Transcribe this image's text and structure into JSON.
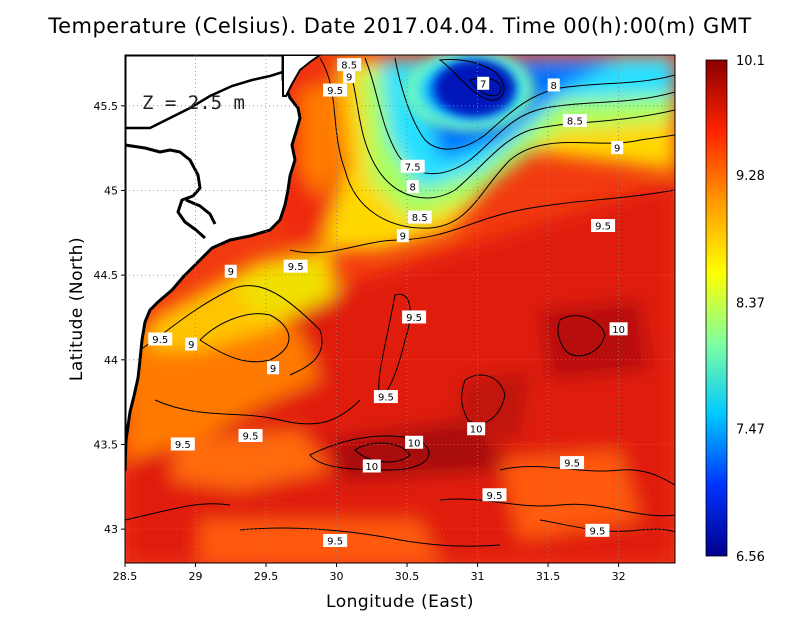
{
  "title": "Temperature (Celsius). Date 2017.04.04. Time 00(h):00(m)  GMT",
  "depth_label": "Z = 2.5 m",
  "x_axis": {
    "label": "Longitude (East)",
    "range": [
      28.5,
      32.4
    ],
    "ticks": [
      "28.5",
      "29",
      "29.5",
      "30",
      "30.5",
      "31",
      "31.5",
      "32"
    ]
  },
  "y_axis": {
    "label": "Latitude (North)",
    "range": [
      42.8,
      45.8
    ],
    "ticks": [
      "43",
      "43.5",
      "44",
      "44.5",
      "45",
      "45.5"
    ]
  },
  "grid": true,
  "colorbar": {
    "ticks": [
      "10.1",
      "9.28",
      "8.37",
      "7.47",
      "6.56"
    ],
    "min": 6.56,
    "max": 10.1,
    "colors": [
      "#00008c",
      "#0033ff",
      "#00c8ff",
      "#7fffa0",
      "#ffff00",
      "#ff9900",
      "#ff2200",
      "#8b0000"
    ]
  },
  "contour_labels": [
    {
      "text": "8.5",
      "lon": 30.09,
      "lat": 45.74
    },
    {
      "text": "9",
      "lon": 30.09,
      "lat": 45.67
    },
    {
      "text": "9.5",
      "lon": 29.99,
      "lat": 45.59
    },
    {
      "text": "7",
      "lon": 31.04,
      "lat": 45.63
    },
    {
      "text": "8",
      "lon": 31.54,
      "lat": 45.62
    },
    {
      "text": "8.5",
      "lon": 31.69,
      "lat": 45.41
    },
    {
      "text": "9",
      "lon": 31.99,
      "lat": 45.25
    },
    {
      "text": "7.5",
      "lon": 30.54,
      "lat": 45.14
    },
    {
      "text": "8",
      "lon": 30.54,
      "lat": 45.02
    },
    {
      "text": "8.5",
      "lon": 30.59,
      "lat": 44.84
    },
    {
      "text": "9",
      "lon": 30.47,
      "lat": 44.73
    },
    {
      "text": "9.5",
      "lon": 31.89,
      "lat": 44.79
    },
    {
      "text": "9.5",
      "lon": 29.71,
      "lat": 44.55
    },
    {
      "text": "9",
      "lon": 29.25,
      "lat": 44.52
    },
    {
      "text": "9.5",
      "lon": 30.55,
      "lat": 44.25
    },
    {
      "text": "10",
      "lon": 32.0,
      "lat": 44.18
    },
    {
      "text": "9.5",
      "lon": 28.75,
      "lat": 44.12
    },
    {
      "text": "9",
      "lon": 28.97,
      "lat": 44.09
    },
    {
      "text": "9",
      "lon": 29.55,
      "lat": 43.95
    },
    {
      "text": "9.5",
      "lon": 30.35,
      "lat": 43.78
    },
    {
      "text": "10",
      "lon": 30.99,
      "lat": 43.59
    },
    {
      "text": "9.5",
      "lon": 29.39,
      "lat": 43.55
    },
    {
      "text": "9.5",
      "lon": 28.91,
      "lat": 43.5
    },
    {
      "text": "10",
      "lon": 30.55,
      "lat": 43.51
    },
    {
      "text": "9.5",
      "lon": 31.67,
      "lat": 43.39
    },
    {
      "text": "10",
      "lon": 30.25,
      "lat": 43.37
    },
    {
      "text": "9.5",
      "lon": 31.12,
      "lat": 43.2
    },
    {
      "text": "9.5",
      "lon": 31.85,
      "lat": 42.99
    },
    {
      "text": "9.5",
      "lon": 29.99,
      "lat": 42.93
    }
  ]
}
